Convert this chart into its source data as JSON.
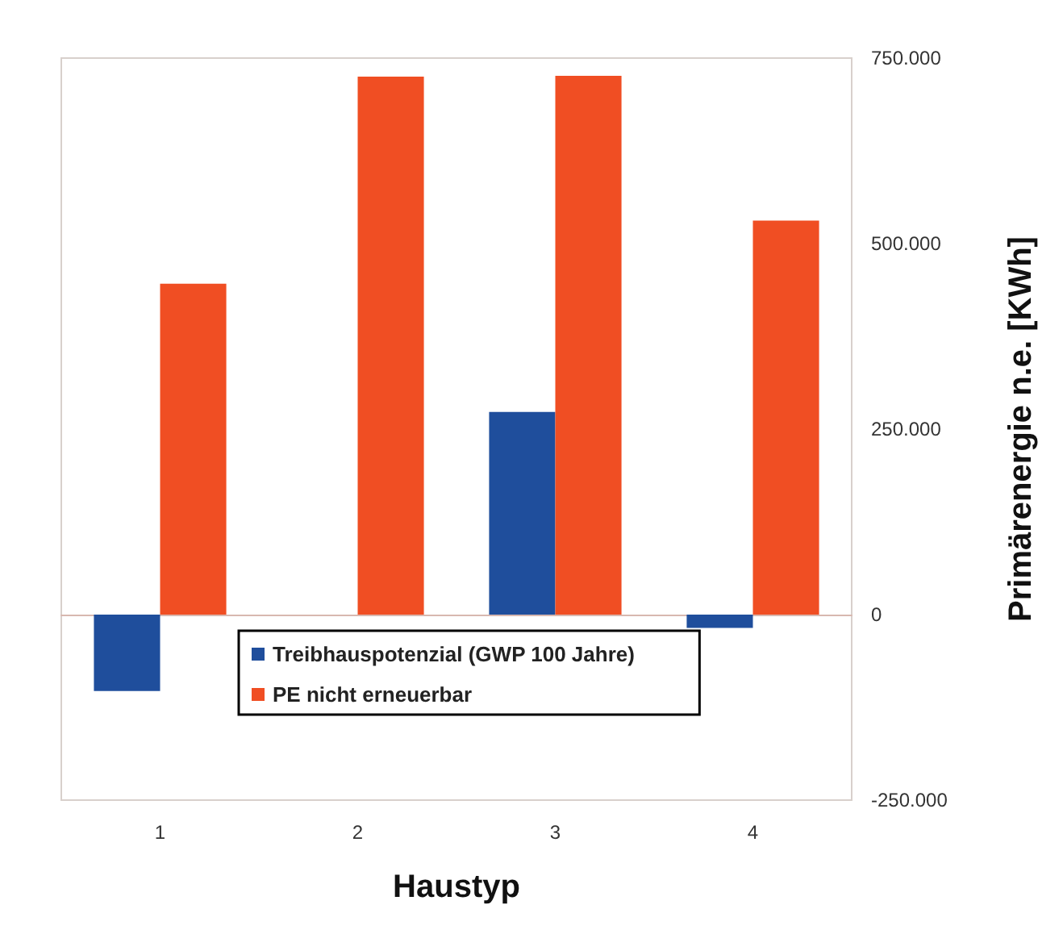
{
  "chart_data": {
    "type": "bar",
    "xlabel": "Haustyp",
    "ylabel": "Primärenergie n.e. [KWh]",
    "categories": [
      "1",
      "2",
      "3",
      "4"
    ],
    "series": [
      {
        "name": "Treibhauspotenzial (GWP 100 Jahre)",
        "color": "#1f4e9c",
        "values": [
          -103000,
          0,
          273000,
          -18000
        ]
      },
      {
        "name": "PE nicht erneuerbar",
        "color": "#f04e23",
        "values": [
          446000,
          725000,
          726000,
          531000
        ]
      }
    ],
    "ylim": [
      -250000,
      750000
    ],
    "yticks": [
      {
        "value": -250000,
        "label": "-250.000"
      },
      {
        "value": 0,
        "label": "0"
      },
      {
        "value": 250000,
        "label": "250.000"
      },
      {
        "value": 500000,
        "label": "500.000"
      },
      {
        "value": 750000,
        "label": "750.000"
      }
    ],
    "legend": "bottom left"
  }
}
